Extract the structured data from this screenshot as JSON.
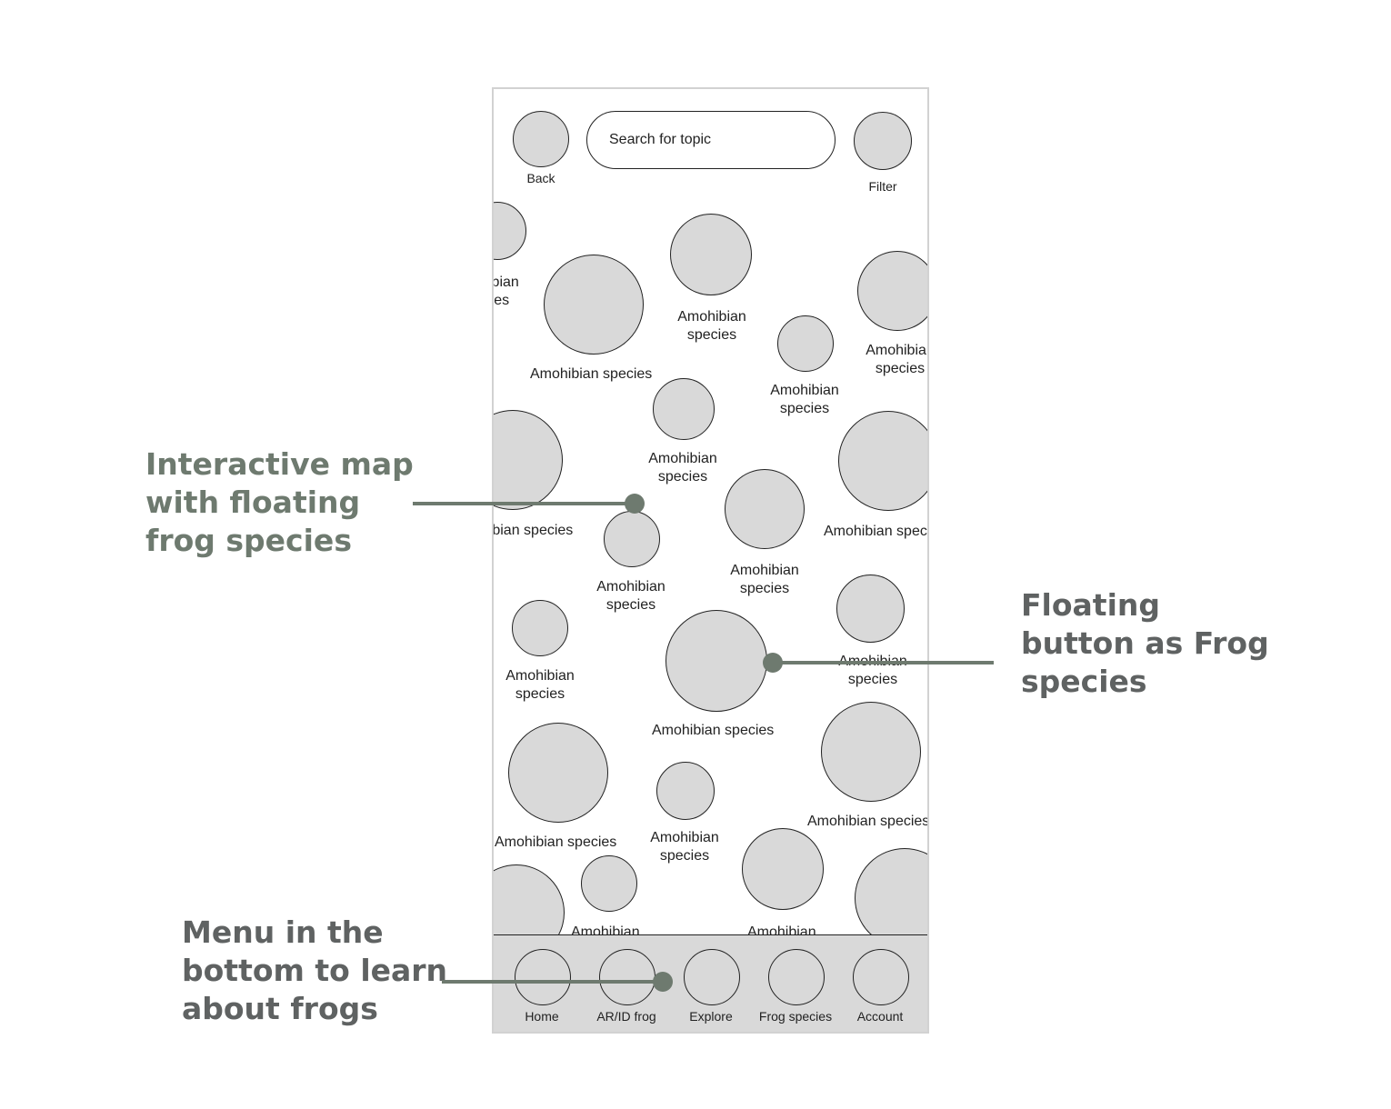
{
  "header": {
    "back_label": "Back",
    "search_placeholder": "Search for topic",
    "filter_label": "Filter"
  },
  "map": {
    "species_label": "Amohibian species",
    "species_word1": "Amohibian",
    "species_word2": "species"
  },
  "nav": {
    "items": [
      {
        "label": "Home"
      },
      {
        "label": "AR/ID frog"
      },
      {
        "label": "Explore"
      },
      {
        "label": "Frog species"
      },
      {
        "label": "Account"
      }
    ]
  },
  "annotations": {
    "map_note": [
      "Interactive map",
      "with floating",
      "frog species"
    ],
    "button_note": [
      "Floating",
      "button as Frog",
      "species"
    ],
    "menu_note": [
      "Menu in the",
      "bottom to learn",
      "about frogs"
    ]
  },
  "colors": {
    "bubble_fill": "#d9d9d9",
    "annotation_green": "#6e7a6f",
    "annotation_gray": "#5f6262"
  }
}
